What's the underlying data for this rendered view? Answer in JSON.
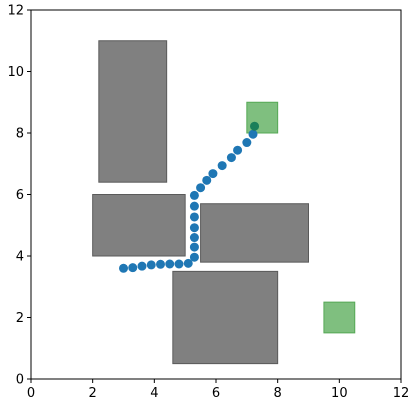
{
  "chart_data": {
    "type": "scatter",
    "title": "",
    "xlabel": "",
    "ylabel": "",
    "xlim": [
      0,
      12
    ],
    "ylim": [
      0,
      12
    ],
    "x_ticks": [
      0,
      2,
      4,
      6,
      8,
      10,
      12
    ],
    "y_ticks": [
      0,
      2,
      4,
      6,
      8,
      10,
      12
    ],
    "x_tick_labels": [
      "0",
      "2",
      "4",
      "6",
      "8",
      "10",
      "12"
    ],
    "y_tick_labels": [
      "0",
      "2",
      "4",
      "6",
      "8",
      "10",
      "12"
    ],
    "grid": false,
    "legend": "none",
    "obstacles": [
      {
        "x0": 2.2,
        "x1": 4.4,
        "y0": 6.4,
        "y1": 11.0
      },
      {
        "x0": 2.0,
        "x1": 5.0,
        "y0": 4.0,
        "y1": 6.0
      },
      {
        "x0": 5.5,
        "x1": 9.0,
        "y0": 3.8,
        "y1": 5.7
      },
      {
        "x0": 4.6,
        "x1": 8.0,
        "y0": 0.5,
        "y1": 3.5
      }
    ],
    "goal_regions": [
      {
        "x0": 7.0,
        "x1": 8.0,
        "y0": 8.0,
        "y1": 9.0
      },
      {
        "x0": 9.5,
        "x1": 10.5,
        "y0": 1.5,
        "y1": 2.5
      }
    ],
    "path": {
      "x": [
        3.0,
        3.3,
        3.6,
        3.9,
        4.2,
        4.5,
        4.8,
        5.1,
        5.3,
        5.3,
        5.3,
        5.3,
        5.3,
        5.3,
        5.3,
        5.5,
        5.7,
        5.9,
        6.2,
        6.5,
        6.7,
        7.0,
        7.2
      ],
      "y": [
        3.6,
        3.62,
        3.67,
        3.71,
        3.73,
        3.74,
        3.74,
        3.76,
        3.96,
        4.29,
        4.6,
        4.92,
        5.27,
        5.62,
        5.97,
        6.22,
        6.46,
        6.68,
        6.94,
        7.2,
        7.44,
        7.69,
        7.96
      ]
    },
    "endpoint": {
      "x": 7.25,
      "y": 8.22
    },
    "colors": {
      "obstacle_fill": "#808080",
      "obstacle_edge": "#5a5a5a",
      "goal_fill": "#7fbf7f",
      "goal_edge": "#55a855",
      "path": "#1f77b4",
      "endpoint": "#1a7f5a"
    }
  }
}
